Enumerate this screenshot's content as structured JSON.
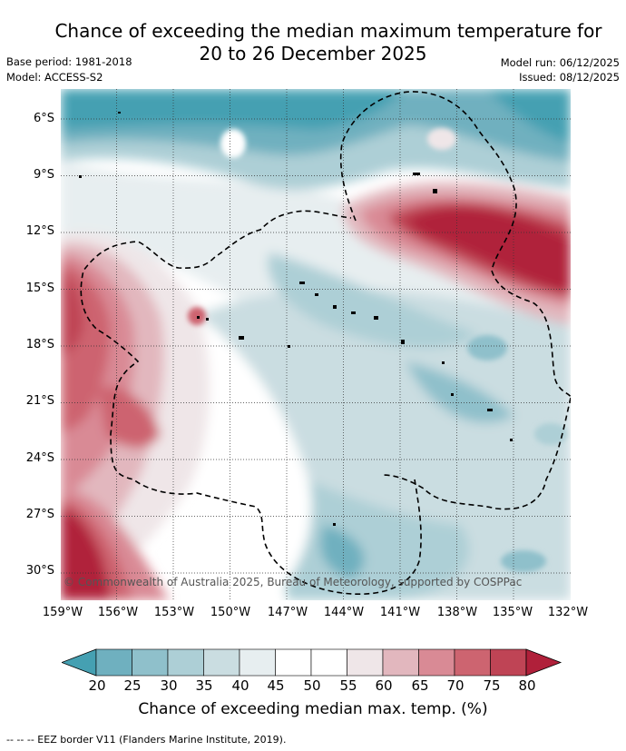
{
  "header": {
    "title_line1": "Chance of exceeding the median maximum temperature for",
    "title_line2": "20 to 26 December 2025",
    "base_period": "Base period: 1981-2018",
    "model": "Model: ACCESS-S2",
    "model_run": "Model run: 06/12/2025",
    "issued": "Issued: 08/12/2025"
  },
  "map": {
    "lat_labels": [
      "6°S",
      "9°S",
      "12°S",
      "15°S",
      "18°S",
      "21°S",
      "24°S",
      "27°S",
      "30°S"
    ],
    "lon_labels": [
      "159°W",
      "156°W",
      "153°W",
      "150°W",
      "147°W",
      "144°W",
      "141°W",
      "138°W",
      "135°W",
      "132°W"
    ],
    "copyright": "© Commonwealth of Australia 2025, Bureau of Meteorology, supported by COSPPac"
  },
  "colorbar": {
    "label": "Chance of exceeding median max. temp. (%)",
    "ticks": [
      "20",
      "25",
      "30",
      "35",
      "40",
      "45",
      "50",
      "55",
      "60",
      "65",
      "70",
      "75",
      "80"
    ],
    "colors": [
      "#45a0b2",
      "#6fb0bf",
      "#8fc0cb",
      "#adcfd6",
      "#cadde1",
      "#e7eef0",
      "#ffffff",
      "#ffffff",
      "#efe6e8",
      "#e2b7be",
      "#d98a95",
      "#cd6470",
      "#bf4455",
      "#b0203a"
    ]
  },
  "legend": {
    "eez_text": "--  --  -- EEZ border V11 (Flanders Marine Institute, 2019)."
  }
}
